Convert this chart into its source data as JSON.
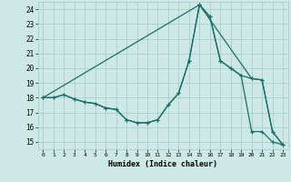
{
  "xlabel": "Humidex (Indice chaleur)",
  "xlim": [
    -0.5,
    23.5
  ],
  "ylim": [
    14.5,
    24.5
  ],
  "xticks": [
    0,
    1,
    2,
    3,
    4,
    5,
    6,
    7,
    8,
    9,
    10,
    11,
    12,
    13,
    14,
    15,
    16,
    17,
    18,
    19,
    20,
    21,
    22,
    23
  ],
  "yticks": [
    15,
    16,
    17,
    18,
    19,
    20,
    21,
    22,
    23,
    24
  ],
  "background_color": "#cde8e5",
  "grid_color": "#a8ceca",
  "line_color": "#1a6e68",
  "line1_x": [
    0,
    1,
    2,
    3,
    4,
    5,
    6,
    7,
    8,
    9,
    10,
    11,
    12,
    13,
    14,
    15,
    16,
    17,
    18,
    19,
    20,
    21,
    22,
    23
  ],
  "line1_y": [
    18,
    18,
    18.2,
    17.9,
    17.7,
    17.6,
    17.3,
    17.2,
    16.5,
    16.3,
    16.3,
    16.5,
    17.5,
    18.3,
    20.5,
    24.3,
    23.5,
    20.5,
    20.0,
    19.5,
    19.3,
    19.2,
    15.7,
    14.8
  ],
  "line2_x": [
    0,
    1,
    2,
    3,
    4,
    5,
    6,
    7,
    8,
    9,
    10,
    11,
    12,
    13,
    14,
    15,
    16,
    17,
    18,
    19,
    20,
    21,
    22,
    23
  ],
  "line2_y": [
    18,
    18,
    18.2,
    17.9,
    17.7,
    17.6,
    17.3,
    17.2,
    16.5,
    16.3,
    16.3,
    16.5,
    17.5,
    18.3,
    20.5,
    24.3,
    23.5,
    20.5,
    20.0,
    19.5,
    15.7,
    15.7,
    15.0,
    14.8
  ],
  "line3_x": [
    0,
    15,
    20,
    21,
    22,
    23
  ],
  "line3_y": [
    18,
    24.3,
    19.3,
    19.2,
    15.7,
    14.8
  ]
}
